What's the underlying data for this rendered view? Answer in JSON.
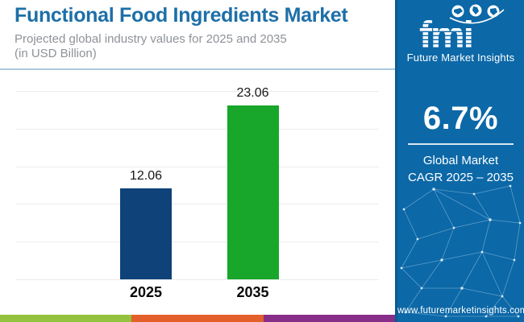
{
  "header": {
    "title": "Functional Food Ingredients Market",
    "subtitle_line1": "Projected global industry values for 2025 and 2035",
    "subtitle_line2": "(in USD Billion)",
    "title_color": "#1d6fa8"
  },
  "chart_data": {
    "type": "bar",
    "title": "Functional Food Ingredients Market",
    "subtitle": "Projected global industry values for 2025 and 2035 (in USD Billion)",
    "categories": [
      "2025",
      "2035"
    ],
    "values": [
      12.06,
      23.06
    ],
    "value_labels": [
      "12.06",
      "23.06"
    ],
    "bar_colors": [
      "#0e4279",
      "#18a62b"
    ],
    "unit": "USD Billion",
    "xlabel": "",
    "ylabel": "",
    "ylim": [
      0,
      25
    ],
    "gridline_step": 5,
    "grid": true,
    "legend": "none"
  },
  "panel": {
    "background": "#0c68a7",
    "logo_text": "fmi",
    "brand_name": "Future Market Insights",
    "cagr_value": "6.7%",
    "cagr_label_line1": "Global Market",
    "cagr_label_line2": "CAGR 2025 – 2035",
    "website": "www.futuremarketinsights.com"
  },
  "footer_strip_colors": [
    "#94c13e",
    "#e4602a",
    "#872e88"
  ]
}
